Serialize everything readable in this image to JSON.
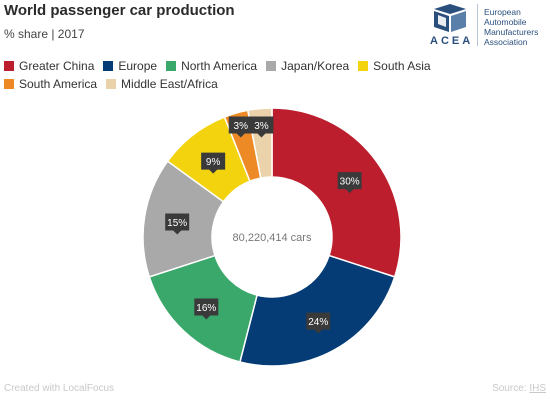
{
  "header": {
    "title": "World passenger car production",
    "subtitle": "% share | 2017"
  },
  "brand": {
    "acronym": "ACEA",
    "name": "European Automobile Manufacturers Association",
    "name_lines": [
      "European",
      "Automobile",
      "Manufacturers",
      "Association"
    ],
    "icon": "acea-cube-logo",
    "color": "#2a4f7d"
  },
  "chart_data": {
    "type": "pie",
    "variant": "donut",
    "title": "World passenger car production",
    "subtitle": "% share | 2017",
    "center_label": "80,220,414 cars",
    "legend_position": "top",
    "categories": [
      "Greater China",
      "Europe",
      "North America",
      "Japan/Korea",
      "South Asia",
      "South America",
      "Middle East/Africa"
    ],
    "values": [
      30,
      24,
      16,
      15,
      9,
      3,
      3
    ],
    "labels": [
      "30%",
      "24%",
      "16%",
      "15%",
      "9%",
      "3%",
      "3%"
    ],
    "colors": [
      "#bc1e2d",
      "#053c75",
      "#3ba86b",
      "#a9a9a9",
      "#f3d20e",
      "#ee8a25",
      "#ead2ab"
    ]
  },
  "footer": {
    "credit": "Created with LocalFocus",
    "source_label": "Source: ",
    "source_link": "IHS"
  }
}
